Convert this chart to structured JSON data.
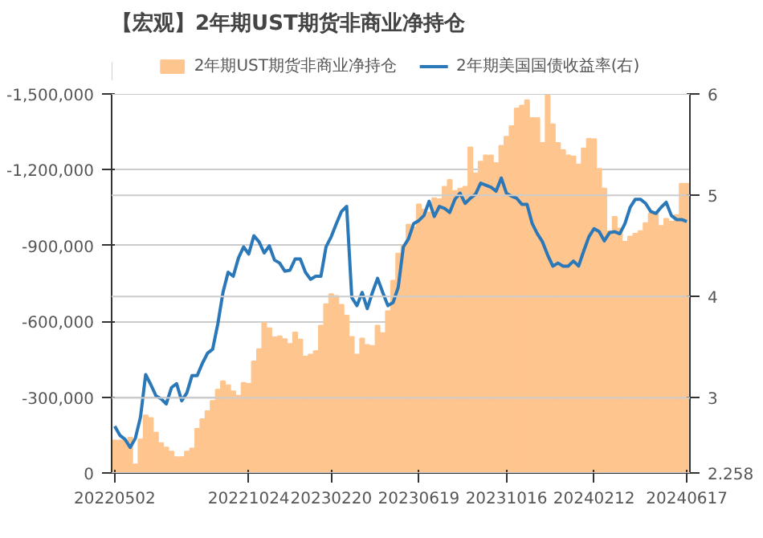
{
  "chart_data": {
    "type": "bar",
    "title": "【宏观】2年期UST期货非商业净持仓",
    "categories": [
      "20220502",
      null,
      null,
      null,
      null,
      null,
      null,
      null,
      null,
      null,
      null,
      null,
      null,
      null,
      null,
      null,
      null,
      null,
      null,
      null,
      null,
      null,
      null,
      null,
      null,
      null,
      "20221024",
      null,
      null,
      null,
      null,
      null,
      null,
      null,
      null,
      null,
      null,
      null,
      null,
      null,
      null,
      null,
      "20230220",
      null,
      null,
      null,
      null,
      null,
      null,
      null,
      null,
      null,
      null,
      null,
      null,
      null,
      null,
      null,
      null,
      "20230619",
      null,
      null,
      null,
      null,
      null,
      null,
      null,
      null,
      null,
      null,
      null,
      null,
      null,
      null,
      null,
      null,
      "20231016",
      null,
      null,
      null,
      null,
      null,
      null,
      null,
      null,
      null,
      null,
      null,
      null,
      null,
      null,
      null,
      null,
      "20240212",
      null,
      null,
      null,
      null,
      null,
      null,
      null,
      null,
      null,
      null,
      null,
      null,
      null,
      null,
      null,
      null,
      null,
      "20240617"
    ],
    "series": [
      {
        "name": "2年期UST期货非商业净持仓",
        "color": "#ffc58f",
        "values": [
          -129000,
          -129000,
          -129000,
          -140000,
          -34000,
          -133000,
          -228000,
          -218000,
          -160000,
          -118000,
          -101000,
          -85000,
          -63000,
          -63000,
          -85000,
          -97000,
          -175000,
          -213000,
          -245000,
          -285000,
          -330000,
          -363000,
          -347000,
          -323000,
          -306000,
          -357000,
          -353000,
          -442000,
          -490000,
          -594000,
          -573000,
          -537000,
          -541000,
          -530000,
          -511000,
          -556000,
          -528000,
          -461000,
          -469000,
          -482000,
          -583000,
          -668000,
          -708000,
          -701000,
          -666000,
          -623000,
          -539000,
          -469000,
          -532000,
          -507000,
          -503000,
          -583000,
          -554000,
          -640000,
          -761000,
          -868000,
          -900000,
          -983000,
          -972000,
          -1063000,
          -1042000,
          -1031000,
          -1088000,
          -1084000,
          -1133000,
          -1160000,
          -1116000,
          -1126000,
          -1133000,
          -1289000,
          -1186000,
          -1232000,
          -1257000,
          -1257000,
          -1227000,
          -1295000,
          -1331000,
          -1373000,
          -1443000,
          -1454000,
          -1475000,
          -1405000,
          -1405000,
          -1306000,
          -1496000,
          -1380000,
          -1306000,
          -1278000,
          -1257000,
          -1253000,
          -1221000,
          -1285000,
          -1323000,
          -1321000,
          -1204000,
          -1126000,
          -957000,
          -1014000,
          -968000,
          -915000,
          -936000,
          -947000,
          -957000,
          -989000,
          -1027000,
          -1031000,
          -978000,
          -1006000,
          -995000,
          -1021000,
          -1145000,
          -1145000
        ]
      },
      {
        "name": "2年期美国国债收益率(右)",
        "type": "line",
        "axis": "y2",
        "color": "#2b78b8",
        "values": [
          2.72,
          2.63,
          2.59,
          2.51,
          2.6,
          2.81,
          3.23,
          3.13,
          3.02,
          2.99,
          2.94,
          3.1,
          3.14,
          2.97,
          3.05,
          3.22,
          3.22,
          3.34,
          3.44,
          3.48,
          3.73,
          4.04,
          4.24,
          4.2,
          4.38,
          4.49,
          4.42,
          4.6,
          4.54,
          4.43,
          4.5,
          4.36,
          4.33,
          4.25,
          4.26,
          4.37,
          4.37,
          4.24,
          4.17,
          4.2,
          4.2,
          4.49,
          4.59,
          4.72,
          4.84,
          4.89,
          3.99,
          3.91,
          4.04,
          3.88,
          4.04,
          4.18,
          4.04,
          3.91,
          3.94,
          4.09,
          4.49,
          4.57,
          4.72,
          4.75,
          4.8,
          4.94,
          4.79,
          4.89,
          4.87,
          4.83,
          4.96,
          5.02,
          4.92,
          4.97,
          5.01,
          5.12,
          5.1,
          5.08,
          5.04,
          5.17,
          5.02,
          4.99,
          4.97,
          4.91,
          4.91,
          4.72,
          4.62,
          4.54,
          4.41,
          4.3,
          4.33,
          4.3,
          4.3,
          4.35,
          4.3,
          4.45,
          4.59,
          4.67,
          4.64,
          4.55,
          4.63,
          4.64,
          4.62,
          4.72,
          4.88,
          4.96,
          4.96,
          4.92,
          4.84,
          4.82,
          4.88,
          4.93,
          4.8,
          4.76,
          4.76,
          4.74
        ]
      }
    ],
    "ylim": [
      0,
      -1500000
    ],
    "yticks": [
      0,
      {
        "value": -300000,
        "label": "-300,000"
      },
      {
        "value": -600000,
        "label": "-600,000"
      },
      {
        "value": -900000,
        "label": "-900,000"
      },
      {
        "value": -1200000,
        "label": "-1,200,000"
      },
      {
        "value": -1500000,
        "label": "-1,500,000"
      }
    ],
    "y2lim": [
      2.258,
      6
    ],
    "y2ticks": [
      2.258,
      3,
      4,
      5,
      6
    ],
    "grid": true,
    "legend": "top",
    "line_style": "solid"
  }
}
